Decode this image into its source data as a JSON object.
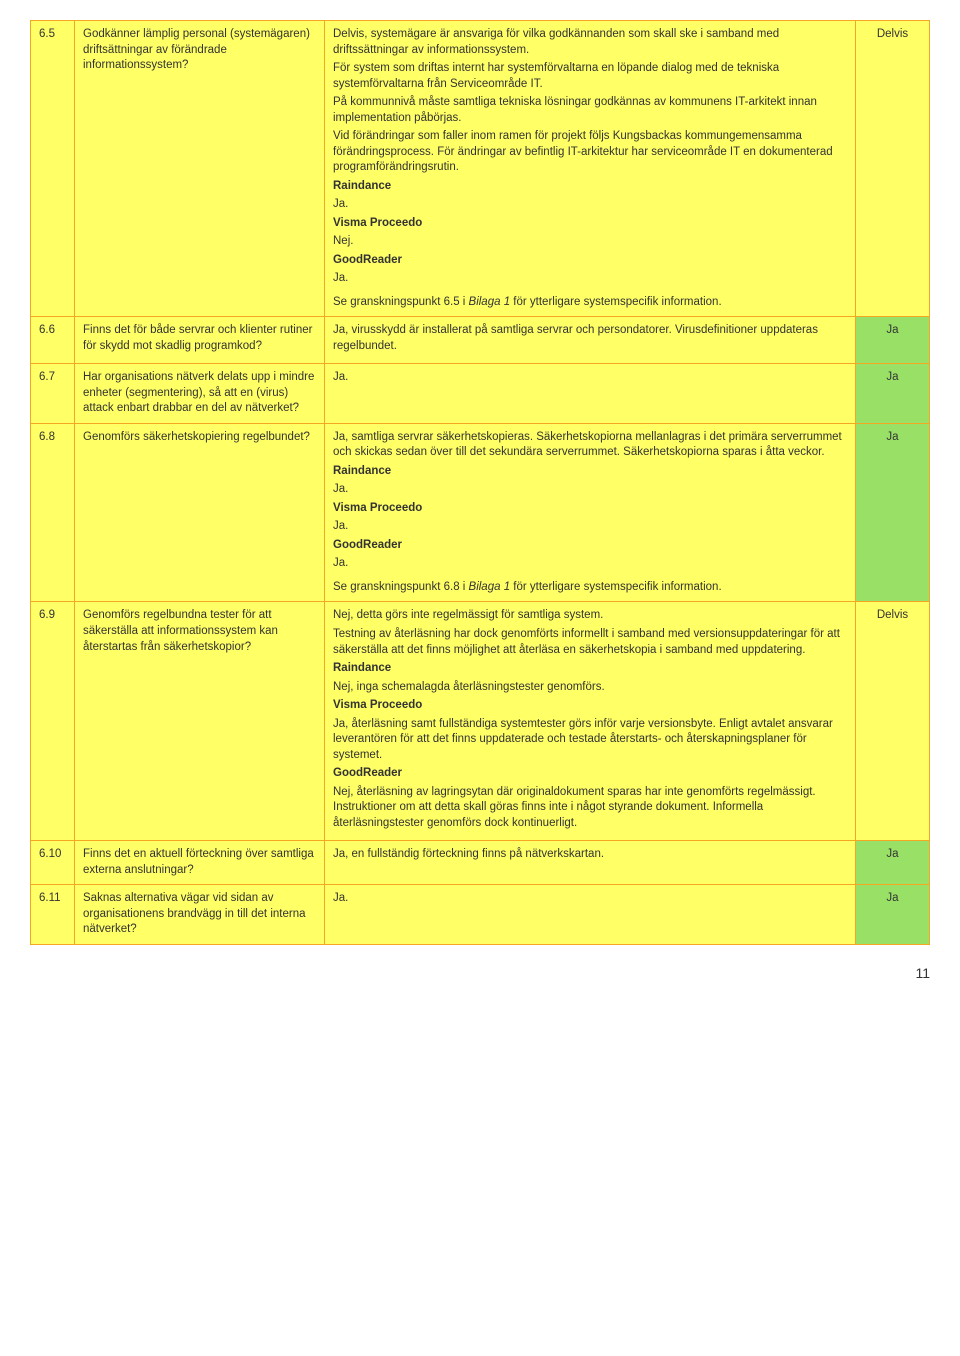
{
  "colors": {
    "border": "#f5a623",
    "yellow": "#ffff66",
    "green": "#99e066",
    "text": "#333333",
    "background": "#ffffff"
  },
  "page_number": "11",
  "rows": [
    {
      "num": "6.5",
      "question": "Godkänner lämplig personal (systemägaren) driftsättningar av förändrade informationssystem?",
      "answer_paras": [
        "Delvis, systemägare är ansvariga för vilka godkännanden som skall ske i samband med driftssättningar av informationssystem.",
        "För system som driftas internt har systemförvaltarna en löpande dialog med de tekniska systemförvaltarna från Serviceområde IT.",
        "På kommunnivå måste samtliga tekniska lösningar godkännas av kommunens IT-arkitekt innan implementation påbörjas.",
        "Vid förändringar som faller inom ramen för projekt följs Kungsbackas kommungemensamma förändringsprocess. För ändringar av befintlig IT-arkitektur har serviceområde IT en dokumenterad programförändringsrutin."
      ],
      "answer_systems": [
        {
          "name": "Raindance",
          "value": "Ja."
        },
        {
          "name": "Visma Proceedo",
          "value": "Nej."
        },
        {
          "name": "GoodReader",
          "value": "Ja."
        }
      ],
      "footnote_prefix": "Se granskningspunkt 6.5 i ",
      "footnote_italic": "Bilaga 1",
      "footnote_suffix": " för ytterligare systemspecifik information.",
      "status": "Delvis",
      "status_type": "yellow"
    },
    {
      "num": "6.6",
      "question": "Finns det för både servrar och klienter rutiner för skydd mot skadlig programkod?",
      "answer_paras": [
        "Ja, virusskydd är installerat på samtliga servrar och persondatorer. Virusdefinitioner uppdateras regelbundet."
      ],
      "status": "Ja",
      "status_type": "green"
    },
    {
      "num": "6.7",
      "question": "Har organisations nätverk delats upp i mindre enheter (segmentering), så att en (virus) attack enbart drabbar en del av nätverket?",
      "answer_paras": [
        "Ja."
      ],
      "status": "Ja",
      "status_type": "green"
    },
    {
      "num": "6.8",
      "question": "Genomförs säkerhetskopiering regelbundet?",
      "answer_paras": [
        "Ja, samtliga servrar säkerhetskopieras. Säkerhetskopiorna mellanlagras i det primära serverrummet och skickas sedan över till det sekundära serverrummet. Säkerhetskopiorna sparas i åtta veckor."
      ],
      "answer_systems": [
        {
          "name": "Raindance",
          "value": "Ja."
        },
        {
          "name": "Visma Proceedo",
          "value": "Ja."
        },
        {
          "name": "GoodReader",
          "value": "Ja."
        }
      ],
      "footnote_prefix": "Se granskningspunkt 6.8 i ",
      "footnote_italic": "Bilaga 1",
      "footnote_suffix": " för ytterligare systemspecifik information.",
      "status": "Ja",
      "status_type": "green"
    },
    {
      "num": "6.9",
      "question": "Genomförs regelbundna tester för att säkerställa att informationssystem kan återstartas från säkerhetskopior?",
      "answer_paras": [
        "Nej, detta görs inte regelmässigt för samtliga system.",
        "Testning av återläsning har dock genomförts informellt i samband med versionsuppdateringar för att säkerställa att det finns möjlighet att återläsa en säkerhetskopia i samband med uppdatering."
      ],
      "answer_systems": [
        {
          "name": "Raindance",
          "value": "Nej, inga schemalagda återläsningstester genomförs."
        },
        {
          "name": "Visma Proceedo",
          "value": "Ja, återläsning samt fullständiga systemtester görs inför varje versionsbyte. Enligt avtalet ansvarar leverantören för att det finns uppdaterade och testade återstarts- och återskapningsplaner för systemet."
        },
        {
          "name": "GoodReader",
          "value": "Nej, återläsning av lagringsytan där originaldokument sparas har inte genomförts regelmässigt. Instruktioner om att detta skall göras finns inte i något styrande dokument. Informella återläsningstester genomförs dock kontinuerligt."
        }
      ],
      "status": "Delvis",
      "status_type": "yellow"
    },
    {
      "num": "6.10",
      "question": "Finns det en aktuell förteckning över samtliga externa anslutningar?",
      "answer_paras": [
        "Ja, en fullständig förteckning finns på nätverkskartan."
      ],
      "status": "Ja",
      "status_type": "green"
    },
    {
      "num": "6.11",
      "question": "Saknas alternativa vägar vid sidan av organisationens brandvägg in till det interna nätverket?",
      "answer_paras": [
        "Ja."
      ],
      "status": "Ja",
      "status_type": "green"
    }
  ]
}
